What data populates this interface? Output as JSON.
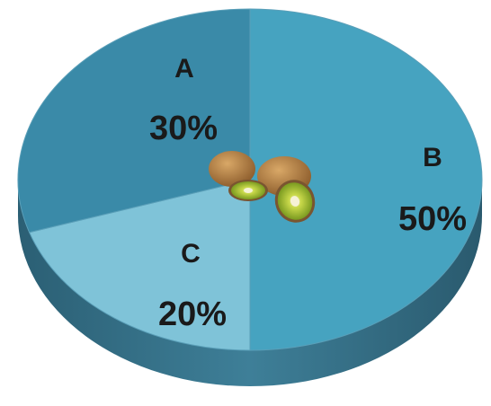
{
  "chart_data": {
    "type": "pie",
    "style": "3d",
    "slices": [
      {
        "label": "A",
        "value": 30,
        "display": "30%",
        "color": "#3a8aa8"
      },
      {
        "label": "B",
        "value": 50,
        "display": "50%",
        "color": "#46a3c0"
      },
      {
        "label": "C",
        "value": 20,
        "display": "20%",
        "color": "#7fc3d8"
      }
    ],
    "center_decoration": "kiwi-fruit-image"
  }
}
